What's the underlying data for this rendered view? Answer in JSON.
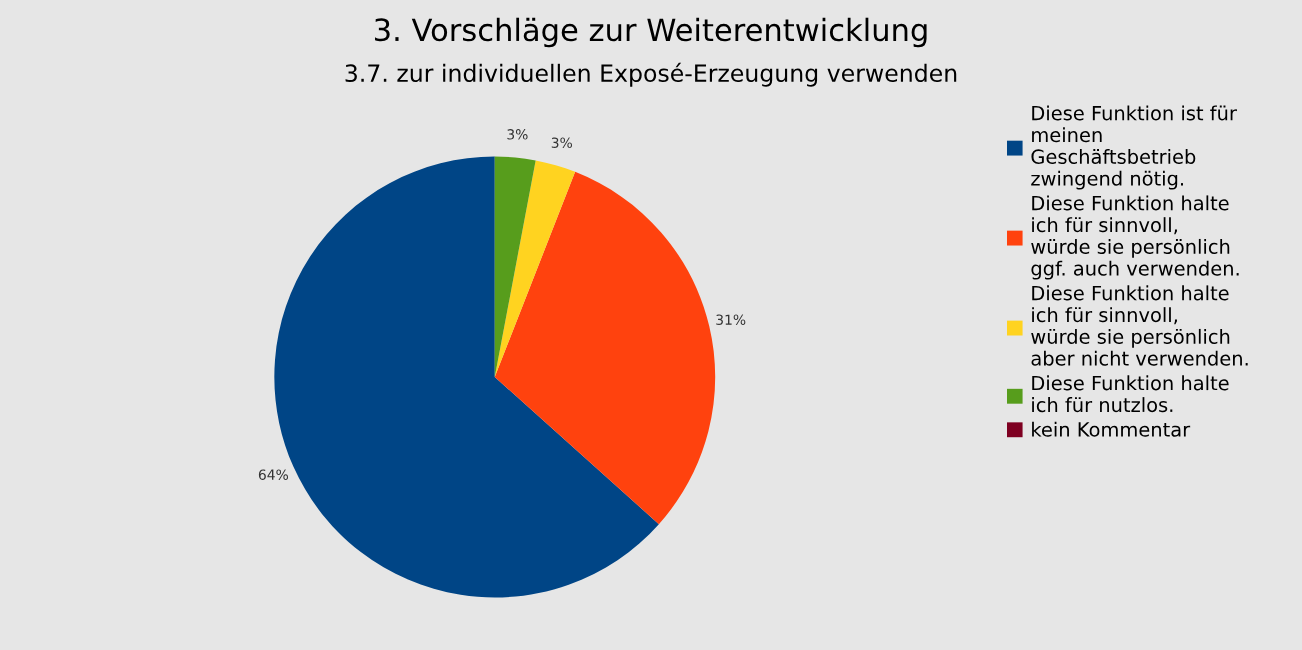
{
  "chart_data": {
    "type": "pie",
    "title": "3. Vorschläge zur Weiterentwicklung",
    "subtitle": "3.7. zur individuellen Exposé-Erzeugung verwenden",
    "categories": [
      "Diese Funktion ist für meinen Geschäftsbetrieb zwingend nötig.",
      "Diese Funktion halte ich für sinnvoll, würde sie persönlich ggf. auch verwenden.",
      "Diese Funktion halte ich für sinnvoll, würde sie persönlich aber nicht verwenden.",
      "Diese Funktion halte ich für nutzlos.",
      "kein Kommentar"
    ],
    "values": [
      64,
      31,
      3,
      3,
      0
    ],
    "value_labels": [
      "64%",
      "31%",
      "3%",
      "3%",
      null
    ],
    "colors": [
      "#004586",
      "#ff420e",
      "#ffd320",
      "#579d1c",
      "#7e0021"
    ],
    "legend": "right"
  }
}
